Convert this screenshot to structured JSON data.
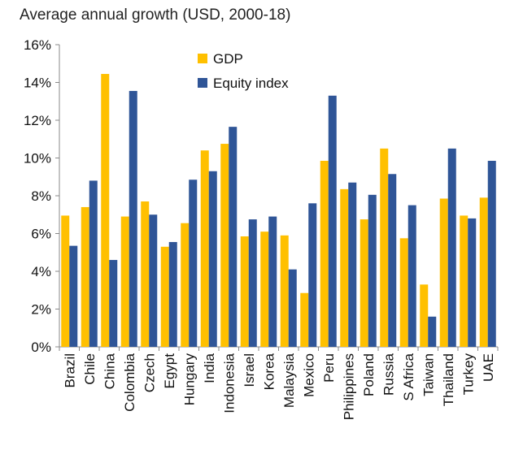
{
  "chart_data": {
    "type": "bar",
    "title": "Average annual growth (USD, 2000-18)",
    "xlabel": "",
    "ylabel": "",
    "ylim": [
      0,
      16
    ],
    "yticks": [
      0,
      2,
      4,
      6,
      8,
      10,
      12,
      14,
      16
    ],
    "ytick_labels": [
      "0%",
      "2%",
      "4%",
      "6%",
      "8%",
      "10%",
      "12%",
      "14%",
      "16%"
    ],
    "grid": false,
    "legend_position": "top-center",
    "categories": [
      "Brazil",
      "Chile",
      "China",
      "Colombia",
      "Czech",
      "Egypt",
      "Hungary",
      "India",
      "Indonesia",
      "Israel",
      "Korea",
      "Malaysia",
      "Mexico",
      "Peru",
      "Philippines",
      "Poland",
      "Russia",
      "S Africa",
      "Taiwan",
      "Thailand",
      "Turkey",
      "UAE"
    ],
    "series": [
      {
        "name": "GDP",
        "color": "#FFC000",
        "values": [
          6.95,
          7.4,
          14.45,
          6.9,
          7.7,
          5.3,
          6.55,
          10.4,
          10.75,
          5.85,
          6.1,
          5.9,
          2.85,
          9.85,
          8.35,
          6.75,
          10.5,
          5.75,
          3.3,
          7.85,
          6.95,
          7.9
        ]
      },
      {
        "name": "Equity index",
        "color": "#2F5597",
        "values": [
          5.35,
          8.8,
          4.6,
          13.55,
          7.0,
          5.55,
          8.85,
          9.3,
          11.65,
          6.75,
          6.9,
          4.1,
          7.6,
          13.3,
          8.7,
          8.05,
          9.15,
          7.5,
          1.6,
          10.5,
          6.8,
          9.85
        ]
      }
    ]
  }
}
